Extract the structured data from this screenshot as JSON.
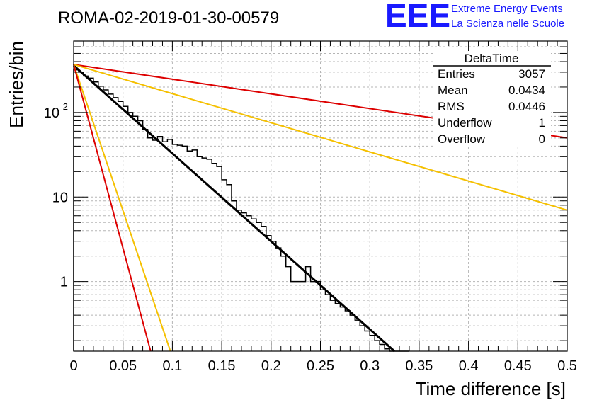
{
  "chart_data": {
    "type": "histogram",
    "title": "ROMA-02-2019-01-30-00579",
    "xlabel": "Time difference [s]",
    "ylabel": "Entries/bin",
    "xlim": [
      0,
      0.5
    ],
    "ylim": [
      0.15,
      700
    ],
    "yscale": "log",
    "grid": true,
    "x_ticks": [
      {
        "v": 0,
        "label": "0"
      },
      {
        "v": 0.05,
        "label": "0.05"
      },
      {
        "v": 0.1,
        "label": "0.1"
      },
      {
        "v": 0.15,
        "label": "0.15"
      },
      {
        "v": 0.2,
        "label": "0.2"
      },
      {
        "v": 0.25,
        "label": "0.25"
      },
      {
        "v": 0.3,
        "label": "0.3"
      },
      {
        "v": 0.35,
        "label": "0.35"
      },
      {
        "v": 0.4,
        "label": "0.4"
      },
      {
        "v": 0.45,
        "label": "0.45"
      },
      {
        "v": 0.5,
        "label": "0.5"
      }
    ],
    "y_ticks": [
      {
        "v": 1,
        "label": "1"
      },
      {
        "v": 10,
        "label": "10"
      },
      {
        "v": 100,
        "label": "10",
        "exp": "2"
      }
    ],
    "bin_width": 0.005,
    "bins": [
      {
        "x": 0.0,
        "y": 320
      },
      {
        "x": 0.005,
        "y": 300
      },
      {
        "x": 0.01,
        "y": 270
      },
      {
        "x": 0.015,
        "y": 255
      },
      {
        "x": 0.02,
        "y": 230
      },
      {
        "x": 0.025,
        "y": 205
      },
      {
        "x": 0.03,
        "y": 185
      },
      {
        "x": 0.035,
        "y": 165
      },
      {
        "x": 0.04,
        "y": 150
      },
      {
        "x": 0.045,
        "y": 135
      },
      {
        "x": 0.05,
        "y": 118
      },
      {
        "x": 0.055,
        "y": 100
      },
      {
        "x": 0.06,
        "y": 90
      },
      {
        "x": 0.065,
        "y": 80
      },
      {
        "x": 0.07,
        "y": 63
      },
      {
        "x": 0.075,
        "y": 50
      },
      {
        "x": 0.08,
        "y": 47
      },
      {
        "x": 0.085,
        "y": 52
      },
      {
        "x": 0.09,
        "y": 45
      },
      {
        "x": 0.095,
        "y": 48
      },
      {
        "x": 0.1,
        "y": 42
      },
      {
        "x": 0.105,
        "y": 41
      },
      {
        "x": 0.11,
        "y": 40
      },
      {
        "x": 0.115,
        "y": 35
      },
      {
        "x": 0.12,
        "y": 36
      },
      {
        "x": 0.125,
        "y": 30
      },
      {
        "x": 0.13,
        "y": 29
      },
      {
        "x": 0.135,
        "y": 28
      },
      {
        "x": 0.14,
        "y": 25
      },
      {
        "x": 0.145,
        "y": 23
      },
      {
        "x": 0.15,
        "y": 16
      },
      {
        "x": 0.155,
        "y": 14
      },
      {
        "x": 0.16,
        "y": 9
      },
      {
        "x": 0.165,
        "y": 7
      },
      {
        "x": 0.17,
        "y": 6.5
      },
      {
        "x": 0.175,
        "y": 6
      },
      {
        "x": 0.18,
        "y": 5.5
      },
      {
        "x": 0.185,
        "y": 5
      },
      {
        "x": 0.19,
        "y": 4.5
      },
      {
        "x": 0.195,
        "y": 3.5
      },
      {
        "x": 0.2,
        "y": 3
      },
      {
        "x": 0.205,
        "y": 2.5
      },
      {
        "x": 0.21,
        "y": 2
      },
      {
        "x": 0.215,
        "y": 1.5
      },
      {
        "x": 0.22,
        "y": 1
      },
      {
        "x": 0.225,
        "y": 1
      },
      {
        "x": 0.23,
        "y": 1
      },
      {
        "x": 0.235,
        "y": 1.5
      },
      {
        "x": 0.24,
        "y": 1
      },
      {
        "x": 0.245,
        "y": 1
      },
      {
        "x": 0.25,
        "y": 0.8
      },
      {
        "x": 0.255,
        "y": 0.7
      },
      {
        "x": 0.26,
        "y": 0.6
      },
      {
        "x": 0.265,
        "y": 0.55
      },
      {
        "x": 0.27,
        "y": 0.5
      },
      {
        "x": 0.275,
        "y": 0.45
      },
      {
        "x": 0.28,
        "y": 0.4
      },
      {
        "x": 0.285,
        "y": 0.35
      },
      {
        "x": 0.29,
        "y": 0.3
      },
      {
        "x": 0.295,
        "y": 0.26
      },
      {
        "x": 0.3,
        "y": 0.23
      },
      {
        "x": 0.305,
        "y": 0.2
      },
      {
        "x": 0.31,
        "y": 0.18
      },
      {
        "x": 0.315,
        "y": 0.16
      },
      {
        "x": 0.32,
        "y": 0.15
      },
      {
        "x": 0.325,
        "y": 0.15
      },
      {
        "x": 0.33,
        "y": 0.15
      },
      {
        "x": 0.335,
        "y": 0.15
      }
    ],
    "fits": [
      {
        "color": "#000000",
        "width": 3,
        "points": [
          [
            0,
            360
          ],
          [
            0.325,
            0.15
          ]
        ]
      },
      {
        "color": "#dd0000",
        "width": 2,
        "points": [
          [
            0,
            370
          ],
          [
            0.5,
            50
          ]
        ]
      },
      {
        "color": "#f5c000",
        "width": 2,
        "points": [
          [
            0,
            370
          ],
          [
            0.5,
            7
          ]
        ]
      },
      {
        "color": "#f5c000",
        "width": 2,
        "points": [
          [
            0,
            370
          ],
          [
            0.098,
            0.15
          ]
        ]
      },
      {
        "color": "#dd0000",
        "width": 2,
        "points": [
          [
            0,
            370
          ],
          [
            0.078,
            0.15
          ]
        ]
      }
    ]
  },
  "stats": {
    "title": "DeltaTime",
    "rows": [
      {
        "label": "Entries",
        "value": "3057"
      },
      {
        "label": "Mean",
        "value": "0.0434"
      },
      {
        "label": "RMS",
        "value": "0.0446"
      },
      {
        "label": "Underflow",
        "value": "1"
      },
      {
        "label": "Overflow",
        "value": "0"
      }
    ]
  },
  "logo": {
    "mark": "EEE",
    "line1": "Extreme Energy Events",
    "line2": "La Scienza nelle Scuole"
  }
}
